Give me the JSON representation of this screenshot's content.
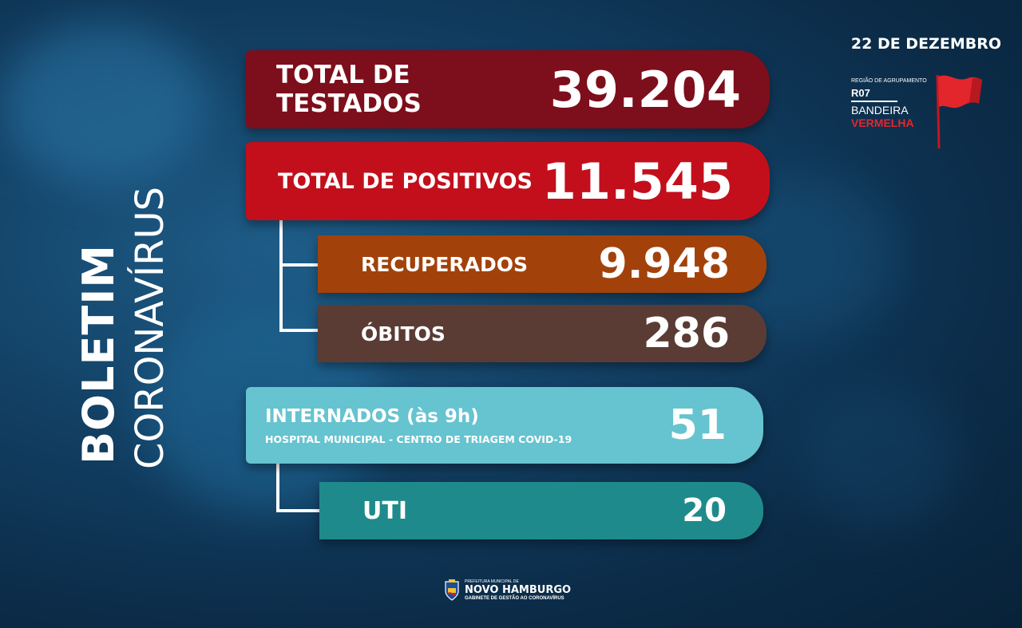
{
  "title": {
    "line1": "BOLETIM",
    "line2": "CORONAVÍRUS"
  },
  "date": "22 DE DEZEMBRO",
  "region": {
    "caption": "REGIÃO DE AGRUPAMENTO",
    "code": "R07",
    "flag_line1": "BANDEIRA",
    "flag_line2": "VERMELHA",
    "flag_color": "#e3262c"
  },
  "stats": {
    "testados": {
      "label": "TOTAL DE TESTADOS",
      "value": "39.204",
      "color": "#7d0e1b"
    },
    "positivos": {
      "label": "TOTAL DE POSITIVOS",
      "value": "11.545",
      "color": "#c30f1c"
    },
    "recuperados": {
      "label": "RECUPERADOS",
      "value": "9.948",
      "color": "#a2420a"
    },
    "obitos": {
      "label": "ÓBITOS",
      "value": "286",
      "color": "#5a3c35"
    },
    "internados": {
      "label": "INTERNADOS (às 9h)",
      "sublabel": "HOSPITAL MUNICIPAL - CENTRO DE TRIAGEM COVID-19",
      "value": "51",
      "color": "#66c3d0"
    },
    "uti": {
      "label": "UTI",
      "value": "20",
      "color": "#1f8a8b"
    }
  },
  "footer": {
    "line1": "PREFEITURA MUNICIPAL DE",
    "line2": "NOVO HAMBURGO",
    "line3": "GABINETE DE GESTÃO AO CORONAVÍRUS"
  }
}
